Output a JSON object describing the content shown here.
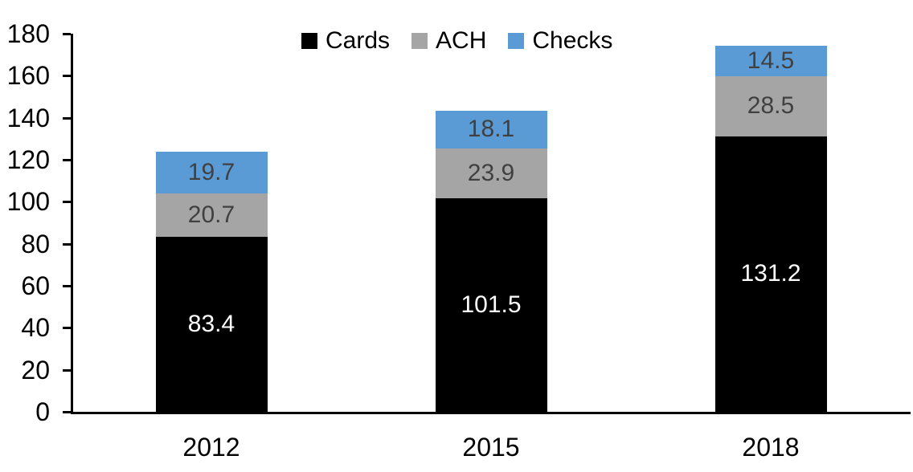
{
  "chart_data": {
    "type": "bar",
    "stacked": true,
    "title": "",
    "xlabel": "",
    "ylabel": "",
    "categories": [
      "2012",
      "2015",
      "2018"
    ],
    "series": [
      {
        "name": "Cards",
        "color": "#000000",
        "label_color": "#FFFFFF",
        "values": [
          83.4,
          101.5,
          131.2
        ]
      },
      {
        "name": "ACH",
        "color": "#A5A5A5",
        "label_color": "#404040",
        "values": [
          20.7,
          23.9,
          28.5
        ]
      },
      {
        "name": "Checks",
        "color": "#5B9BD5",
        "label_color": "#404040",
        "values": [
          19.7,
          18.1,
          14.5
        ]
      }
    ],
    "totals": [
      123.8,
      143.5,
      174.2
    ],
    "ylim": [
      0,
      180
    ],
    "ytick_interval": 20,
    "yticks": [
      0,
      20,
      40,
      60,
      80,
      100,
      120,
      140,
      160,
      180
    ],
    "legend_position": "top",
    "legend_labels": [
      "Cards",
      "ACH",
      "Checks"
    ],
    "grid": false,
    "axis_color": "#000000",
    "background_color": "#FFFFFF"
  }
}
